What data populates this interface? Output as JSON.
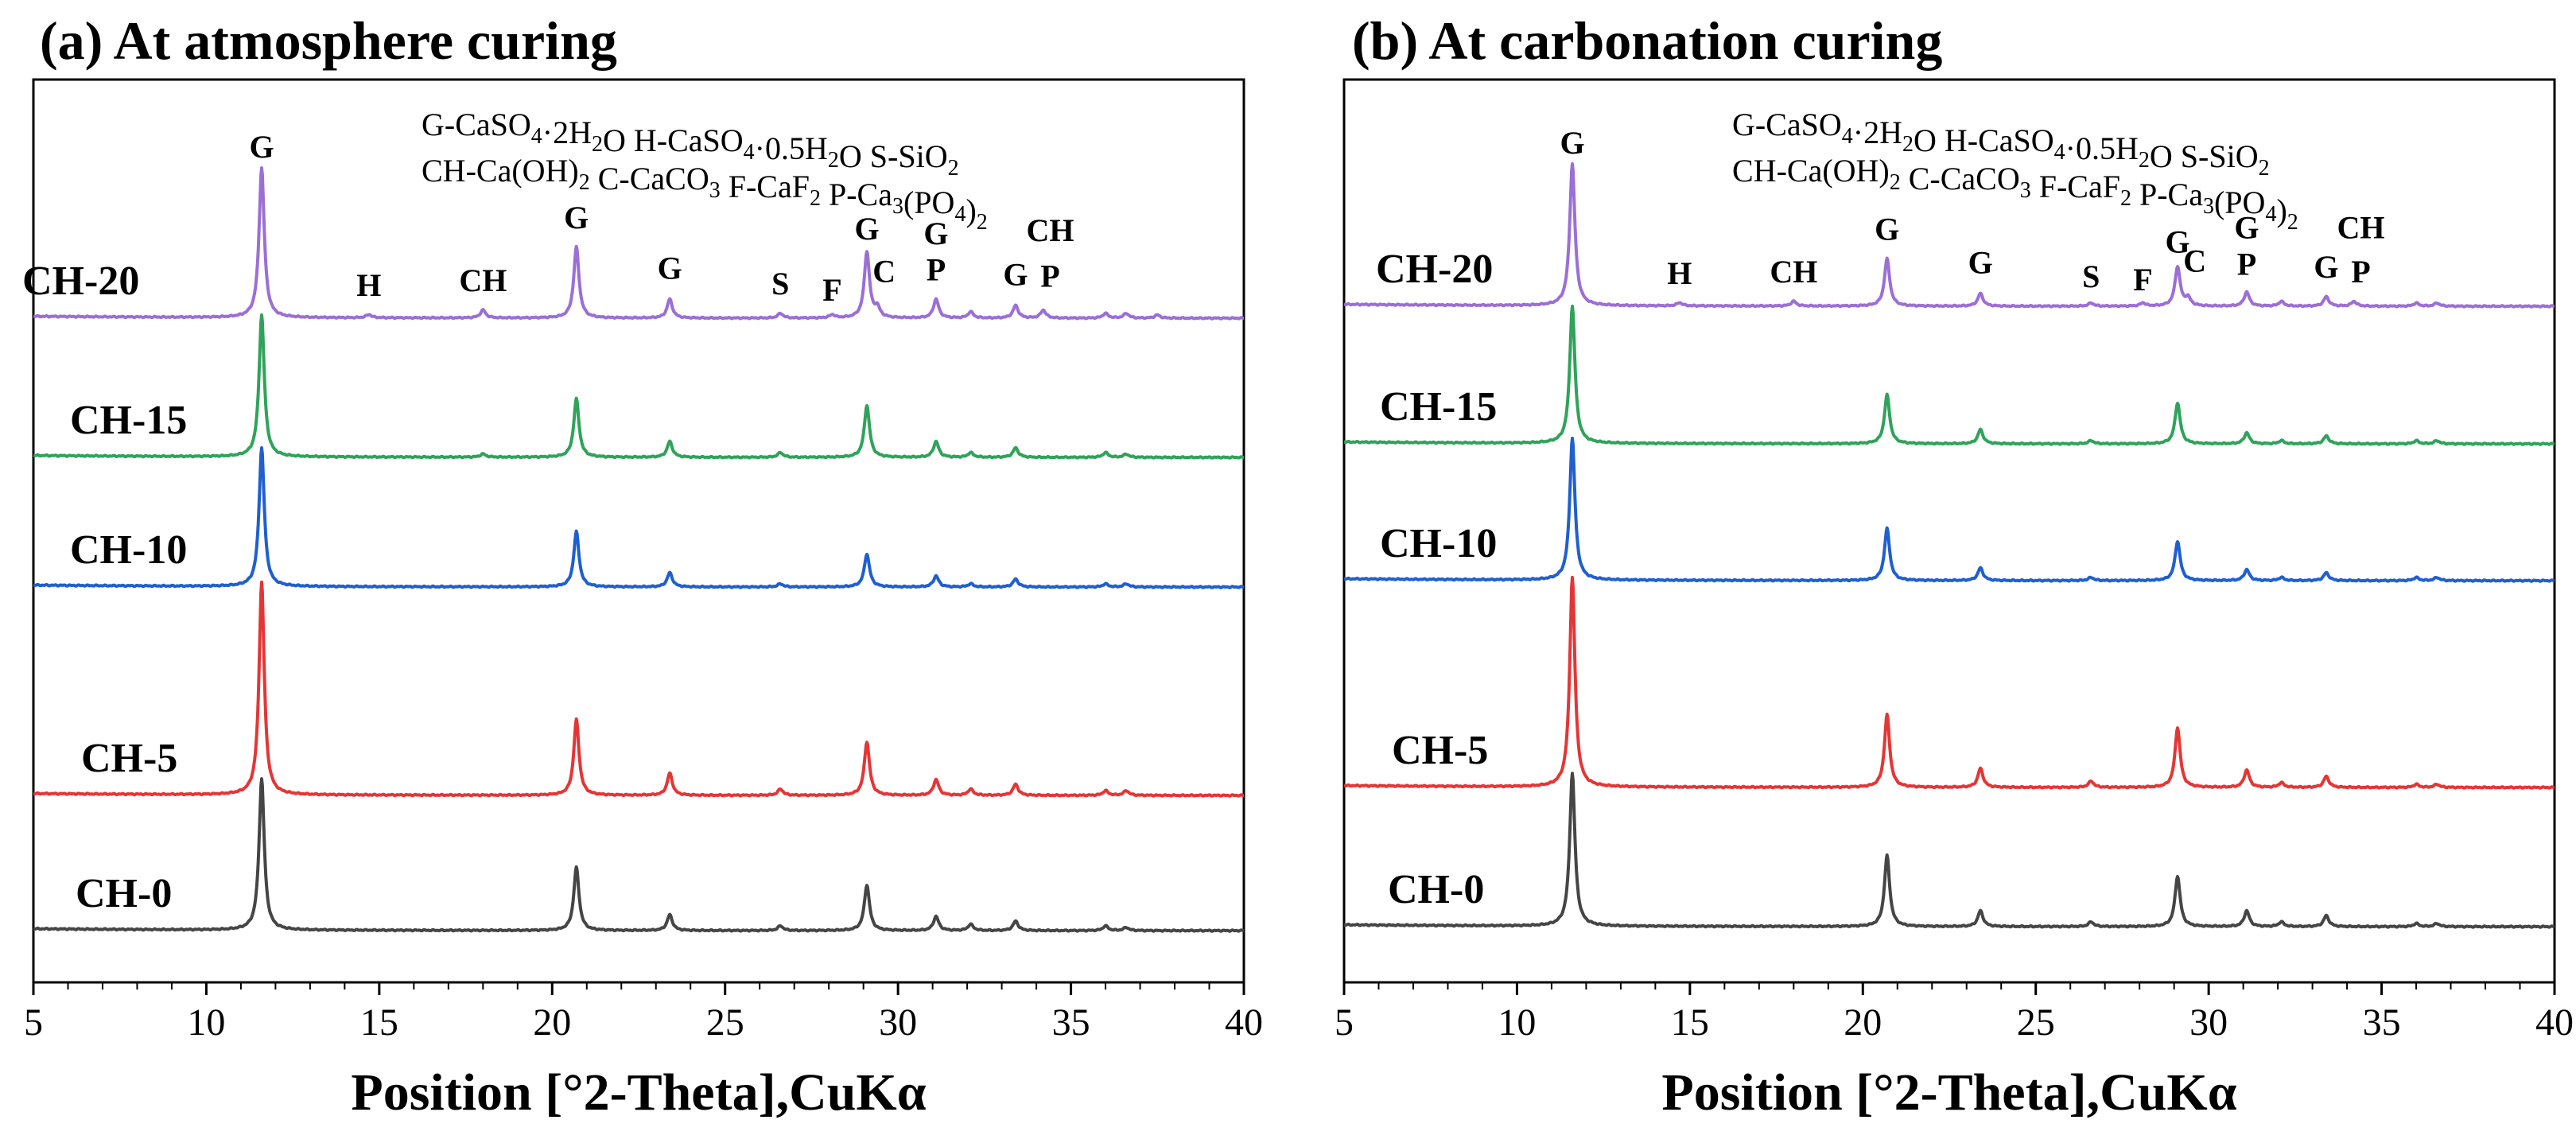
{
  "figure": {
    "xlabel": "Position [°2-Theta],CuKα",
    "xlim": [
      5,
      40
    ],
    "xticks": [
      "5",
      "10",
      "15",
      "20",
      "25",
      "30",
      "35",
      "40"
    ],
    "legend_lines": [
      [
        "G-CaSO",
        {
          "sub": "4"
        },
        "·2H",
        {
          "sub": "2"
        },
        "O   H-CaSO",
        {
          "sub": "4"
        },
        "·0.5H",
        {
          "sub": "2"
        },
        "O   S-SiO",
        {
          "sub": "2"
        }
      ],
      [
        "CH-Ca(OH)",
        {
          "sub": "2"
        },
        "   C-CaCO",
        {
          "sub": "3"
        },
        "   F-CaF",
        {
          "sub": "2"
        },
        "   P-Ca",
        {
          "sub": "3"
        },
        "(PO",
        {
          "sub": "4"
        },
        ")",
        {
          "sub": "2"
        }
      ]
    ],
    "colors": {
      "CH-20": "#9b6fd6",
      "CH-15": "#2fa35a",
      "CH-10": "#1f5fd0",
      "CH-5": "#e53535",
      "CH-0": "#454545"
    }
  },
  "chart_data": [
    {
      "type": "line",
      "title": "(a) At atmosphere curing",
      "xlabel": "Position [°2-Theta],CuKα",
      "ylabel": "",
      "xlim": [
        5,
        40
      ],
      "series": [
        {
          "name": "CH-20",
          "baseline": 4,
          "peaks": [
            [
              11.6,
              0.95
            ],
            [
              14.7,
              0.02
            ],
            [
              18.0,
              0.05
            ],
            [
              20.7,
              0.45
            ],
            [
              23.4,
              0.12
            ],
            [
              26.6,
              0.03
            ],
            [
              28.1,
              0.02
            ],
            [
              29.1,
              0.42
            ],
            [
              29.4,
              0.06
            ],
            [
              31.1,
              0.12
            ],
            [
              32.1,
              0.04
            ],
            [
              33.4,
              0.08
            ],
            [
              34.2,
              0.05
            ],
            [
              36.0,
              0.03
            ],
            [
              36.6,
              0.03
            ],
            [
              37.5,
              0.02
            ]
          ]
        },
        {
          "name": "CH-15",
          "baseline": 3,
          "peaks": [
            [
              11.6,
              0.9
            ],
            [
              18.0,
              0.02
            ],
            [
              20.7,
              0.37
            ],
            [
              23.4,
              0.1
            ],
            [
              26.6,
              0.03
            ],
            [
              29.1,
              0.33
            ],
            [
              31.1,
              0.1
            ],
            [
              32.1,
              0.03
            ],
            [
              33.4,
              0.06
            ],
            [
              36.0,
              0.03
            ],
            [
              36.6,
              0.02
            ]
          ]
        },
        {
          "name": "CH-10",
          "baseline": 2,
          "peaks": [
            [
              11.6,
              0.88
            ],
            [
              20.7,
              0.35
            ],
            [
              23.4,
              0.09
            ],
            [
              26.6,
              0.02
            ],
            [
              29.1,
              0.21
            ],
            [
              31.1,
              0.07
            ],
            [
              32.1,
              0.02
            ],
            [
              33.4,
              0.05
            ],
            [
              36.0,
              0.02
            ],
            [
              36.6,
              0.02
            ]
          ]
        },
        {
          "name": "CH-5",
          "baseline": 1,
          "peaks": [
            [
              11.6,
              1.35
            ],
            [
              20.7,
              0.48
            ],
            [
              23.4,
              0.14
            ],
            [
              26.6,
              0.04
            ],
            [
              29.1,
              0.34
            ],
            [
              31.1,
              0.1
            ],
            [
              32.1,
              0.04
            ],
            [
              33.4,
              0.07
            ],
            [
              36.0,
              0.03
            ],
            [
              36.6,
              0.03
            ]
          ]
        },
        {
          "name": "CH-0",
          "baseline": 0,
          "peaks": [
            [
              11.6,
              0.96
            ],
            [
              20.7,
              0.4
            ],
            [
              23.4,
              0.1
            ],
            [
              26.6,
              0.03
            ],
            [
              29.1,
              0.29
            ],
            [
              31.1,
              0.09
            ],
            [
              32.1,
              0.04
            ],
            [
              33.4,
              0.06
            ],
            [
              36.0,
              0.03
            ],
            [
              36.6,
              0.02
            ]
          ]
        }
      ],
      "peak_labels": [
        {
          "text": "G",
          "x": 11.6,
          "y": 0.95
        },
        {
          "text": "H",
          "x": 14.7,
          "y": 0.07
        },
        {
          "text": "CH",
          "x": 18.0,
          "y": 0.1
        },
        {
          "text": "G",
          "x": 20.7,
          "y": 0.5
        },
        {
          "text": "G",
          "x": 23.4,
          "y": 0.18
        },
        {
          "text": "S",
          "x": 26.6,
          "y": 0.08
        },
        {
          "text": "F",
          "x": 28.1,
          "y": 0.04
        },
        {
          "text": "G",
          "x": 29.1,
          "y": 0.43
        },
        {
          "text": "C",
          "x": 29.6,
          "y": 0.16
        },
        {
          "text": "G",
          "x": 31.1,
          "y": 0.4
        },
        {
          "text": "P",
          "x": 31.1,
          "y": 0.17
        },
        {
          "text": "G",
          "x": 33.4,
          "y": 0.14
        },
        {
          "text": "CH",
          "x": 34.4,
          "y": 0.42
        },
        {
          "text": "P",
          "x": 34.4,
          "y": 0.13
        }
      ]
    },
    {
      "type": "line",
      "title": "(b) At carbonation curing",
      "xlabel": "Position [°2-Theta],CuKα",
      "ylabel": "",
      "xlim": [
        5,
        40
      ],
      "series": [
        {
          "name": "CH-20",
          "baseline": 4,
          "peaks": [
            [
              11.6,
              0.9
            ],
            [
              14.7,
              0.02
            ],
            [
              18.0,
              0.03
            ],
            [
              20.7,
              0.3
            ],
            [
              23.4,
              0.08
            ],
            [
              26.6,
              0.02
            ],
            [
              28.1,
              0.02
            ],
            [
              29.1,
              0.25
            ],
            [
              29.4,
              0.05
            ],
            [
              31.1,
              0.09
            ],
            [
              32.1,
              0.03
            ],
            [
              33.4,
              0.06
            ],
            [
              34.2,
              0.03
            ],
            [
              36.0,
              0.02
            ],
            [
              36.6,
              0.02
            ]
          ]
        },
        {
          "name": "CH-15",
          "baseline": 3,
          "peaks": [
            [
              11.6,
              0.87
            ],
            [
              20.7,
              0.31
            ],
            [
              23.4,
              0.09
            ],
            [
              26.6,
              0.02
            ],
            [
              29.1,
              0.26
            ],
            [
              31.1,
              0.07
            ],
            [
              32.1,
              0.02
            ],
            [
              33.4,
              0.05
            ],
            [
              36.0,
              0.02
            ],
            [
              36.6,
              0.02
            ]
          ]
        },
        {
          "name": "CH-10",
          "baseline": 2,
          "peaks": [
            [
              11.6,
              0.9
            ],
            [
              20.7,
              0.33
            ],
            [
              23.4,
              0.08
            ],
            [
              26.6,
              0.02
            ],
            [
              29.1,
              0.25
            ],
            [
              31.1,
              0.07
            ],
            [
              32.1,
              0.02
            ],
            [
              33.4,
              0.05
            ],
            [
              36.0,
              0.02
            ],
            [
              36.6,
              0.02
            ]
          ]
        },
        {
          "name": "CH-5",
          "baseline": 1,
          "peaks": [
            [
              11.6,
              1.33
            ],
            [
              20.7,
              0.46
            ],
            [
              23.4,
              0.12
            ],
            [
              26.6,
              0.04
            ],
            [
              29.1,
              0.38
            ],
            [
              31.1,
              0.11
            ],
            [
              32.1,
              0.03
            ],
            [
              33.4,
              0.07
            ],
            [
              36.0,
              0.02
            ],
            [
              36.6,
              0.02
            ]
          ]
        },
        {
          "name": "CH-0",
          "baseline": 0,
          "peaks": [
            [
              11.6,
              0.97
            ],
            [
              20.7,
              0.45
            ],
            [
              23.4,
              0.1
            ],
            [
              26.6,
              0.03
            ],
            [
              29.1,
              0.32
            ],
            [
              31.1,
              0.1
            ],
            [
              32.1,
              0.03
            ],
            [
              33.4,
              0.07
            ],
            [
              36.0,
              0.02
            ],
            [
              36.6,
              0.02
            ]
          ]
        }
      ],
      "peak_labels": [
        {
          "text": "G",
          "x": 11.6,
          "y": 0.9
        },
        {
          "text": "H",
          "x": 14.7,
          "y": 0.07
        },
        {
          "text": "CH",
          "x": 18.0,
          "y": 0.08
        },
        {
          "text": "G",
          "x": 20.7,
          "y": 0.35
        },
        {
          "text": "G",
          "x": 23.4,
          "y": 0.14
        },
        {
          "text": "S",
          "x": 26.6,
          "y": 0.05
        },
        {
          "text": "F",
          "x": 28.1,
          "y": 0.03
        },
        {
          "text": "G",
          "x": 29.1,
          "y": 0.27
        },
        {
          "text": "C",
          "x": 29.6,
          "y": 0.15
        },
        {
          "text": "G",
          "x": 31.1,
          "y": 0.36
        },
        {
          "text": "P",
          "x": 31.1,
          "y": 0.13
        },
        {
          "text": "G",
          "x": 33.4,
          "y": 0.11
        },
        {
          "text": "CH",
          "x": 34.4,
          "y": 0.36
        },
        {
          "text": "P",
          "x": 34.4,
          "y": 0.08
        }
      ]
    }
  ]
}
